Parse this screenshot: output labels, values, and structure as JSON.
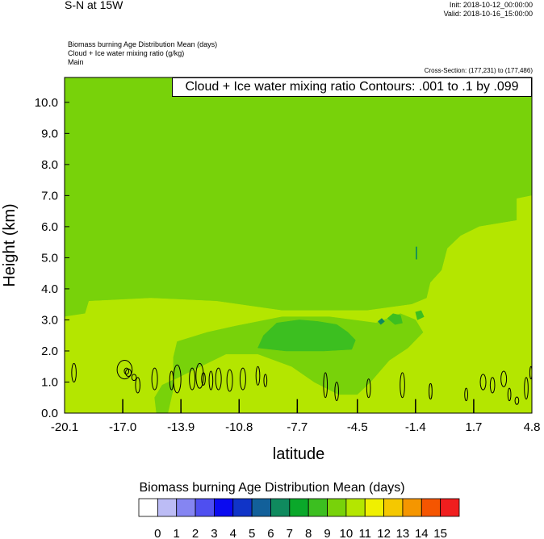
{
  "header": {
    "title": "S-N at 15W",
    "init": "Init: 2018-10-12_00:00:00",
    "valid": "Valid: 2018-10-16_15:00:00",
    "field_lines": [
      "Biomass burning Age Distribution Mean   (days)",
      "Cloud + Ice water mixing ratio   (g/kg)",
      "Main"
    ],
    "cross_section": "Cross-Section: (177,231) to (177,486)",
    "contour_label": "Cloud + Ice water mixing ratio Contours: .001 to .1 by .099"
  },
  "chart_data": {
    "type": "heatmap",
    "xlabel": "latitude",
    "ylabel": "Height (km)",
    "xlim": [
      -20.1,
      4.8
    ],
    "ylim": [
      0.0,
      10.8
    ],
    "x_ticks": [
      "-20.1",
      "-17.0",
      "-13.9",
      "-10.8",
      "-7.7",
      "-4.5",
      "-1.4",
      "1.7",
      "4.8"
    ],
    "y_ticks": [
      "0.0",
      "1.0",
      "2.0",
      "3.0",
      "4.0",
      "5.0",
      "6.0",
      "7.0",
      "8.0",
      "9.0",
      "10.0"
    ],
    "colorbar": {
      "title": "Biomass burning Age Distribution Mean  (days)",
      "labels": [
        "0",
        "1",
        "2",
        "3",
        "4",
        "5",
        "6",
        "7",
        "8",
        "9",
        "10",
        "11",
        "12",
        "13",
        "14",
        "15"
      ],
      "colors": [
        "#ffffff",
        "#bcbcf5",
        "#8585f2",
        "#4f4ff0",
        "#0a0af0",
        "#1034c8",
        "#12609a",
        "#0f8a5e",
        "#0aa82a",
        "#3cbf20",
        "#78d20a",
        "#b4e600",
        "#f0f000",
        "#f5c800",
        "#f59600",
        "#f55500",
        "#f01e1e"
      ]
    },
    "fill_regions": [
      {
        "days": 9.5,
        "polygon": [
          [
            -20.1,
            10.8
          ],
          [
            4.8,
            10.8
          ],
          [
            4.8,
            7.0
          ],
          [
            4.0,
            6.9
          ],
          [
            4.0,
            6.2
          ],
          [
            2.0,
            6.0
          ],
          [
            1.0,
            5.7
          ],
          [
            0.3,
            5.3
          ],
          [
            0.0,
            4.6
          ],
          [
            -0.6,
            4.2
          ],
          [
            -0.8,
            3.7
          ],
          [
            -1.6,
            3.5
          ],
          [
            -2.6,
            3.3
          ],
          [
            -3.6,
            3.3
          ],
          [
            -6.0,
            3.3
          ],
          [
            -8.5,
            3.3
          ],
          [
            -12.0,
            3.6
          ],
          [
            -15.5,
            3.7
          ],
          [
            -18.8,
            3.6
          ],
          [
            -19.0,
            3.2
          ],
          [
            -20.1,
            3.1
          ]
        ]
      },
      {
        "days": 10.5,
        "polygon": [
          [
            -20.1,
            3.1
          ],
          [
            -19.0,
            3.2
          ],
          [
            -18.8,
            3.6
          ],
          [
            -15.5,
            3.7
          ],
          [
            -12.0,
            3.6
          ],
          [
            -8.5,
            3.3
          ],
          [
            -4.0,
            3.3
          ],
          [
            -1.6,
            3.5
          ],
          [
            -0.8,
            3.7
          ],
          [
            -0.6,
            4.2
          ],
          [
            0.0,
            4.6
          ],
          [
            0.3,
            5.3
          ],
          [
            1.0,
            5.7
          ],
          [
            2.0,
            6.0
          ],
          [
            4.0,
            6.2
          ],
          [
            4.0,
            6.9
          ],
          [
            4.8,
            7.0
          ],
          [
            4.8,
            0.0
          ],
          [
            -20.1,
            0.0
          ]
        ]
      },
      {
        "days": 9.5,
        "polygon": [
          [
            -14.1,
            2.3
          ],
          [
            -12.5,
            2.6
          ],
          [
            -11.0,
            2.8
          ],
          [
            -8.5,
            3.1
          ],
          [
            -6.0,
            3.1
          ],
          [
            -3.5,
            2.9
          ],
          [
            -2.2,
            3.2
          ],
          [
            -1.4,
            3.0
          ],
          [
            -1.0,
            2.6
          ],
          [
            -1.8,
            2.1
          ],
          [
            -2.8,
            1.7
          ],
          [
            -3.8,
            1.0
          ],
          [
            -4.5,
            0.6
          ],
          [
            -5.5,
            0.6
          ],
          [
            -6.8,
            1.0
          ],
          [
            -8.0,
            1.5
          ],
          [
            -9.8,
            1.9
          ],
          [
            -11.5,
            1.9
          ],
          [
            -13.2,
            1.4
          ],
          [
            -14.2,
            1.1
          ],
          [
            -14.9,
            0.9
          ],
          [
            -15.3,
            0.5
          ],
          [
            -15.2,
            0.0
          ],
          [
            -14.6,
            0.0
          ],
          [
            -14.3,
            0.8
          ],
          [
            -14.3,
            1.8
          ]
        ]
      },
      {
        "days": 8.5,
        "polygon": [
          [
            -9.8,
            2.1
          ],
          [
            -9.5,
            2.5
          ],
          [
            -8.8,
            2.9
          ],
          [
            -7.6,
            3.0
          ],
          [
            -6.6,
            2.95
          ],
          [
            -5.6,
            2.85
          ],
          [
            -5.0,
            2.6
          ],
          [
            -4.6,
            2.35
          ],
          [
            -4.8,
            2.05
          ],
          [
            -6.3,
            2.0
          ],
          [
            -8.3,
            2.0
          ]
        ]
      },
      {
        "days": 8.5,
        "polygon": [
          [
            -2.9,
            3.05
          ],
          [
            -2.6,
            3.2
          ],
          [
            -2.2,
            3.15
          ],
          [
            -2.1,
            2.9
          ],
          [
            -2.5,
            2.85
          ]
        ]
      },
      {
        "days": 8.5,
        "polygon": [
          [
            -1.4,
            3.25
          ],
          [
            -1.1,
            3.3
          ],
          [
            -0.95,
            3.1
          ],
          [
            -1.3,
            3.0
          ]
        ]
      },
      {
        "days": 6.5,
        "polygon": [
          [
            -1.38,
            5.35
          ],
          [
            -1.33,
            5.35
          ],
          [
            -1.33,
            4.95
          ],
          [
            -1.38,
            4.95
          ]
        ]
      },
      {
        "days": 6.5,
        "polygon": [
          [
            -3.4,
            2.95
          ],
          [
            -3.2,
            3.05
          ],
          [
            -3.05,
            2.95
          ],
          [
            -3.25,
            2.85
          ]
        ]
      }
    ],
    "cloud_contours": [
      {
        "level": 0.001,
        "ellipses": [
          [
            -19.6,
            1.3,
            0.12,
            0.3
          ],
          [
            -16.9,
            1.4,
            0.4,
            0.3
          ],
          [
            -16.7,
            1.3,
            0.15,
            0.12
          ],
          [
            -16.4,
            1.15,
            0.12,
            0.1
          ],
          [
            -16.2,
            0.9,
            0.12,
            0.25
          ],
          [
            -15.3,
            1.1,
            0.15,
            0.35
          ],
          [
            -14.4,
            1.05,
            0.1,
            0.3
          ],
          [
            -14.1,
            1.1,
            0.2,
            0.45
          ],
          [
            -13.3,
            1.1,
            0.15,
            0.35
          ],
          [
            -12.9,
            1.2,
            0.2,
            0.4
          ],
          [
            -12.7,
            1.1,
            0.1,
            0.2
          ],
          [
            -12.3,
            1.05,
            0.1,
            0.3
          ],
          [
            -11.9,
            1.1,
            0.15,
            0.35
          ],
          [
            -11.3,
            1.05,
            0.15,
            0.35
          ],
          [
            -10.6,
            1.1,
            0.15,
            0.35
          ],
          [
            -9.8,
            1.2,
            0.1,
            0.3
          ],
          [
            -9.4,
            1.05,
            0.08,
            0.2
          ],
          [
            -6.2,
            0.9,
            0.1,
            0.4
          ],
          [
            -5.6,
            0.7,
            0.1,
            0.3
          ],
          [
            -3.9,
            0.8,
            0.1,
            0.3
          ],
          [
            -2.1,
            0.9,
            0.12,
            0.4
          ],
          [
            -0.6,
            0.7,
            0.08,
            0.25
          ],
          [
            1.3,
            0.6,
            0.08,
            0.2
          ],
          [
            2.2,
            1.0,
            0.15,
            0.25
          ],
          [
            2.7,
            0.9,
            0.12,
            0.25
          ],
          [
            3.3,
            1.1,
            0.15,
            0.25
          ],
          [
            3.6,
            0.6,
            0.08,
            0.2
          ],
          [
            4.0,
            0.4,
            0.1,
            0.12
          ],
          [
            4.5,
            0.8,
            0.1,
            0.35
          ],
          [
            4.75,
            1.3,
            0.06,
            0.2
          ]
        ]
      },
      {
        "level": 0.1,
        "ellipses": [
          [
            -16.8,
            1.35,
            0.12,
            0.1
          ]
        ]
      }
    ],
    "vertical_bars": [
      {
        "x": -17.0,
        "y_top": 0.45
      },
      {
        "x": -13.9,
        "y_top": 0.45
      },
      {
        "x": -10.8,
        "y_top": 0.45
      },
      {
        "x": -7.7,
        "y_top": 0.45
      },
      {
        "x": -4.5,
        "y_top": 0.45
      },
      {
        "x": -1.4,
        "y_top": 0.45
      },
      {
        "x": 1.7,
        "y_top": 0.45
      }
    ]
  }
}
